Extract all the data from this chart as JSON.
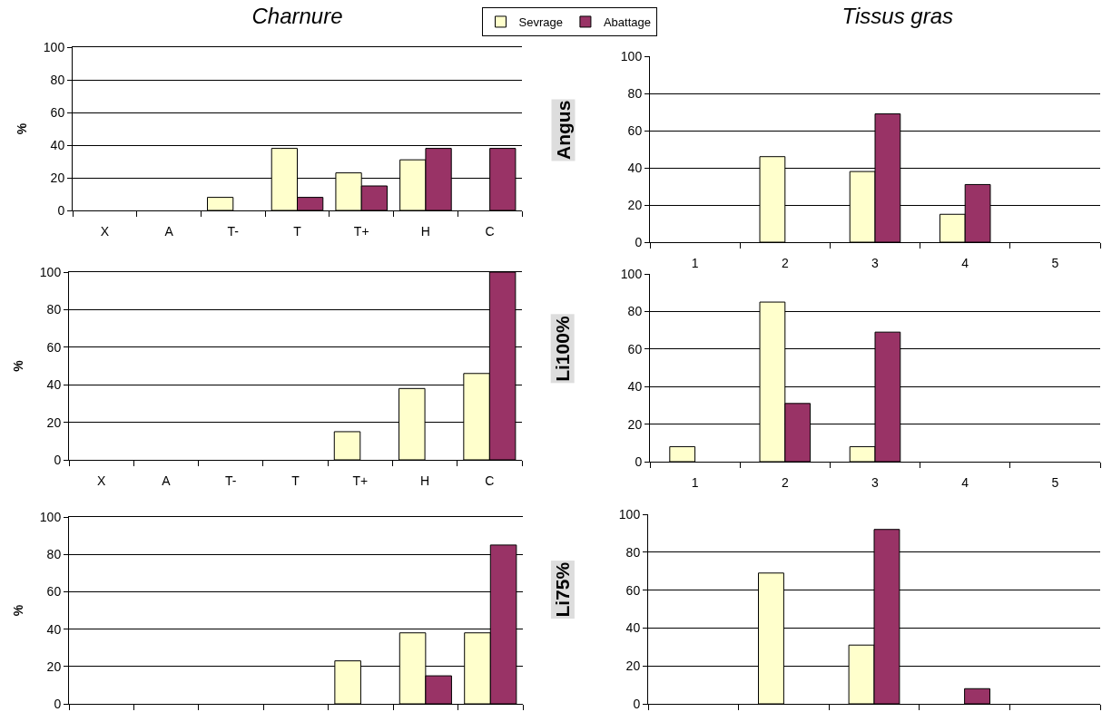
{
  "chart_data": [
    {
      "type": "bar",
      "title": "Charnure",
      "ylabel": "%",
      "categories": [
        "X",
        "A",
        "T-",
        "T",
        "T+",
        "H",
        "C"
      ],
      "series": [
        {
          "name": "Sevrage",
          "color": "#ffffcc",
          "values": [
            null,
            null,
            8,
            38,
            23,
            31,
            null
          ]
        },
        {
          "name": "Abattage",
          "color": "#993366",
          "values": [
            null,
            null,
            null,
            8,
            15,
            38,
            38
          ]
        }
      ],
      "ylim": [
        0,
        100
      ],
      "yticks": [
        0,
        20,
        40,
        60,
        80,
        100
      ],
      "grid": "y",
      "legend": "top"
    },
    {
      "type": "bar",
      "title": "Tissus gras",
      "ylabel": "Angus",
      "categories": [
        "1",
        "2",
        "3",
        "4",
        "5"
      ],
      "series": [
        {
          "color": "#ffffcc",
          "values": [
            null,
            46,
            38,
            15,
            null
          ]
        },
        {
          "color": "#993366",
          "values": [
            null,
            null,
            69,
            31,
            null
          ]
        }
      ],
      "ylim": [
        0,
        100
      ],
      "yticks": [
        0,
        20,
        40,
        60,
        80,
        100
      ],
      "grid": "y"
    },
    {
      "type": "bar",
      "ylabel": "%",
      "categories": [
        "X",
        "A",
        "T-",
        "T",
        "T+",
        "H",
        "C"
      ],
      "series": [
        {
          "color": "#ffffcc",
          "values": [
            null,
            null,
            null,
            null,
            15,
            38,
            46
          ]
        },
        {
          "color": "#993366",
          "values": [
            null,
            null,
            null,
            null,
            null,
            null,
            100
          ]
        }
      ],
      "ylim": [
        0,
        100
      ],
      "yticks": [
        0,
        20,
        40,
        60,
        80,
        100
      ],
      "grid": "y"
    },
    {
      "type": "bar",
      "ylabel": "Li100%",
      "categories": [
        "1",
        "2",
        "3",
        "4",
        "5"
      ],
      "series": [
        {
          "color": "#ffffcc",
          "values": [
            8,
            85,
            8,
            null,
            null
          ]
        },
        {
          "color": "#993366",
          "values": [
            null,
            31,
            69,
            null,
            null
          ]
        }
      ],
      "ylim": [
        0,
        100
      ],
      "yticks": [
        0,
        20,
        40,
        60,
        80,
        100
      ],
      "grid": "y"
    },
    {
      "type": "bar",
      "ylabel": "%",
      "categories": [
        null,
        null,
        null,
        null,
        null,
        null,
        null
      ],
      "series": [
        {
          "color": "#ffffcc",
          "values": [
            null,
            null,
            null,
            null,
            23,
            38,
            38
          ]
        },
        {
          "color": "#993366",
          "values": [
            null,
            null,
            null,
            null,
            null,
            15,
            85
          ]
        }
      ],
      "ylim": [
        0,
        100
      ],
      "yticks": [
        0,
        20,
        40,
        60,
        80,
        100
      ],
      "grid": "y",
      "tick_labels": "y"
    },
    {
      "type": "bar",
      "ylabel": "Li75%",
      "categories": [
        null,
        null,
        null,
        null,
        null
      ],
      "series": [
        {
          "color": "#ffffcc",
          "values": [
            null,
            69,
            31,
            null,
            null
          ]
        },
        {
          "color": "#993366",
          "values": [
            null,
            null,
            92,
            8,
            null
          ]
        }
      ],
      "ylim": [
        0,
        100
      ],
      "yticks": [
        0,
        20,
        40,
        60,
        80,
        100
      ],
      "grid": "y",
      "tick_labels": "y"
    }
  ]
}
